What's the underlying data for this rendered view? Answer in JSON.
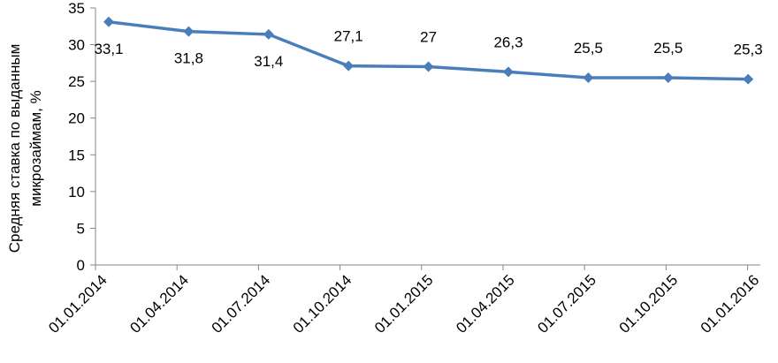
{
  "chart_data": {
    "type": "line",
    "y_label": [
      "Средняя ставка по выданным",
      "микрозаймам, %"
    ],
    "categories": [
      "01.01.2014",
      "01.04.2014",
      "01.07.2014",
      "01.10.2014",
      "01.01.2015",
      "01.04.2015",
      "01.07.2015",
      "01.10.2015",
      "01.01.2016"
    ],
    "values": [
      33.1,
      31.8,
      31.4,
      27.1,
      27,
      26.3,
      25.5,
      25.5,
      25.3
    ],
    "value_labels": [
      "33,1",
      "31,8",
      "31,4",
      "27,1",
      "27",
      "26,3",
      "25,5",
      "25,5",
      "25,3"
    ],
    "color": "#4a7ebb",
    "ylim": [
      0,
      35
    ],
    "yticks": [
      0,
      5,
      10,
      15,
      20,
      25,
      30,
      35
    ],
    "grid": false
  }
}
